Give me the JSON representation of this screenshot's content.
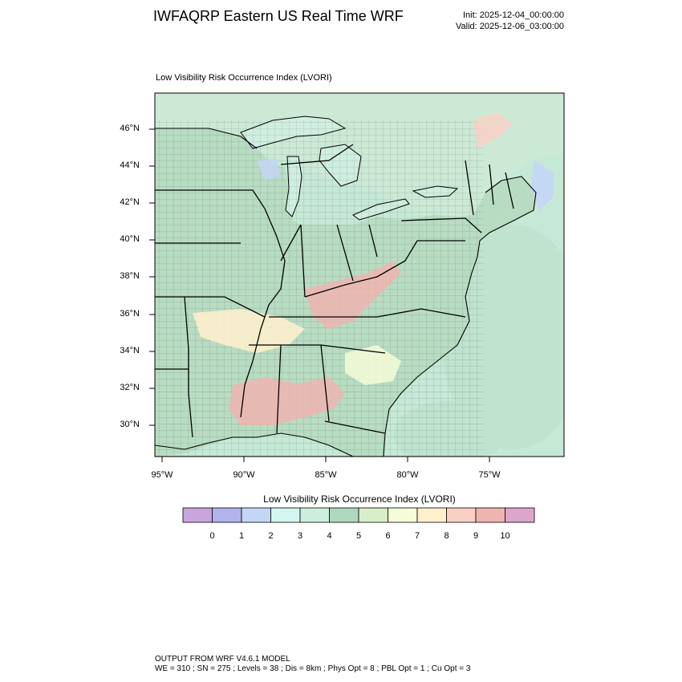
{
  "header": {
    "title": "IWFAQRP Eastern US Real Time WRF",
    "init": "Init: 2025-12-04_00:00:00",
    "valid": "Valid: 2025-12-06_03:00:00"
  },
  "map": {
    "field_label": "Low Visibility Risk Occurrence Index   (LVORI)",
    "lat_labels": [
      "46°N",
      "44°N",
      "42°N",
      "40°N",
      "38°N",
      "36°N",
      "34°N",
      "32°N",
      "30°N"
    ],
    "lon_labels": [
      "95°W",
      "90°W",
      "85°W",
      "80°W",
      "75°W"
    ],
    "colors": {
      "land_base": "#c8e6d0",
      "water_lake": "#cfeee0",
      "ocean": "#c6e8d6",
      "high_risk": "#eeb4b0",
      "mid_risk": "#fff3c8",
      "low_risk": "#bfe0c6",
      "boundary": "#000000"
    }
  },
  "colorbar": {
    "title": "Low Visibility Risk Occurrence Index  (LVORI)",
    "labels": [
      "0",
      "1",
      "2",
      "3",
      "4",
      "5",
      "6",
      "7",
      "8",
      "9",
      "10"
    ],
    "colors": [
      "#c8a6dc",
      "#b2b2ec",
      "#c4d6f6",
      "#d4f6f0",
      "#cdeedc",
      "#add8be",
      "#d8eec8",
      "#f4fcd8",
      "#fff0cc",
      "#fad0c4",
      "#eeb4b0",
      "#dca6cc"
    ]
  },
  "footer": {
    "line1": "OUTPUT FROM WRF V4.6.1 MODEL",
    "line2": "WE = 310 ; SN = 275 ; Levels = 38 ; Dis = 8km ; Phys Opt = 8 ; PBL Opt = 1 ; Cu Opt = 3"
  }
}
